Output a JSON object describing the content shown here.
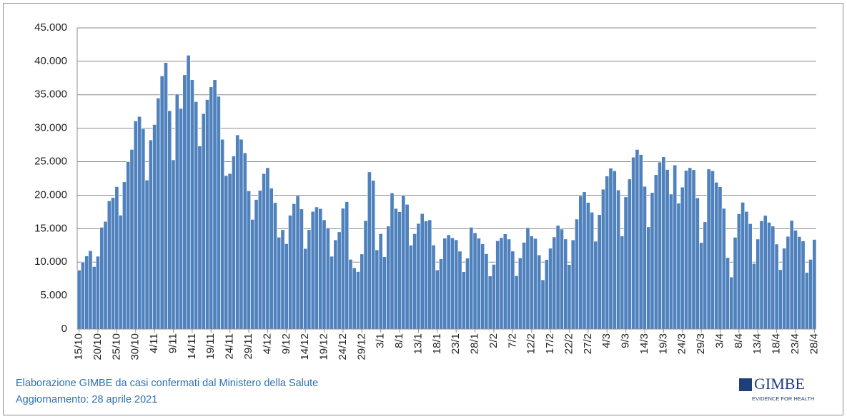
{
  "chart_data": {
    "type": "bar",
    "categories": [
      "15/10",
      null,
      null,
      null,
      null,
      "20/10",
      null,
      null,
      null,
      null,
      "25/10",
      null,
      null,
      null,
      null,
      "30/10",
      null,
      null,
      null,
      null,
      "4/11",
      null,
      null,
      null,
      null,
      "9/11",
      null,
      null,
      null,
      null,
      "14/11",
      null,
      null,
      null,
      null,
      "19/11",
      null,
      null,
      null,
      null,
      "24/11",
      null,
      null,
      null,
      null,
      "29/11",
      null,
      null,
      null,
      null,
      "4/12",
      null,
      null,
      null,
      null,
      "9/12",
      null,
      null,
      null,
      null,
      "14/12",
      null,
      null,
      null,
      null,
      "19/12",
      null,
      null,
      null,
      null,
      "24/12",
      null,
      null,
      null,
      null,
      "29/12",
      null,
      null,
      null,
      null,
      "3/1",
      null,
      null,
      null,
      null,
      "8/1",
      null,
      null,
      null,
      null,
      "13/1",
      null,
      null,
      null,
      null,
      "18/1",
      null,
      null,
      null,
      null,
      "23/1",
      null,
      null,
      null,
      null,
      "28/1",
      null,
      null,
      null,
      null,
      "2/2",
      null,
      null,
      null,
      null,
      "7/2",
      null,
      null,
      null,
      null,
      "12/2",
      null,
      null,
      null,
      null,
      "17/2",
      null,
      null,
      null,
      null,
      "22/2",
      null,
      null,
      null,
      null,
      "27/2",
      null,
      null,
      null,
      null,
      "4/3",
      null,
      null,
      null,
      null,
      "9/3",
      null,
      null,
      null,
      null,
      "14/3",
      null,
      null,
      null,
      null,
      "19/3",
      null,
      null,
      null,
      null,
      "24/3",
      null,
      null,
      null,
      null,
      "29/3",
      null,
      null,
      null,
      null,
      "3/4",
      null,
      null,
      null,
      null,
      "8/4",
      null,
      null,
      null,
      null,
      "13/4",
      null,
      null,
      null,
      null,
      "18/4",
      null,
      null,
      null,
      null,
      "23/4",
      null,
      null,
      null,
      null,
      "28/4"
    ],
    "values": [
      8804,
      10010,
      10925,
      11705,
      9338,
      10874,
      15199,
      16079,
      19143,
      19644,
      21273,
      17012,
      21994,
      24991,
      26831,
      31084,
      31758,
      29907,
      22253,
      28244,
      30550,
      34505,
      37809,
      39811,
      32616,
      25271,
      35098,
      32961,
      37978,
      40902,
      37255,
      33979,
      27354,
      32191,
      34283,
      36176,
      37242,
      34767,
      28337,
      22930,
      23232,
      25853,
      29003,
      28352,
      26323,
      20648,
      16377,
      19350,
      20709,
      23225,
      24099,
      21052,
      18887,
      13720,
      14842,
      12756,
      16999,
      18727,
      19903,
      17938,
      12030,
      14844,
      17572,
      18236,
      17992,
      16308,
      15104,
      10872,
      13318,
      14522,
      18040,
      19037,
      10407,
      9132,
      8585,
      11212,
      16202,
      23477,
      22211,
      11831,
      14245,
      10800,
      15378,
      20331,
      18020,
      17533,
      19978,
      18627,
      12532,
      14242,
      15774,
      17246,
      16146,
      16310,
      12545,
      8824,
      10497,
      13571,
      14078,
      13633,
      13331,
      11629,
      8561,
      10593,
      15204,
      14372,
      13574,
      12715,
      11252,
      7925,
      9660,
      13189,
      13659,
      14218,
      13442,
      11641,
      7970,
      10630,
      12956,
      15146,
      13908,
      13532,
      11068,
      7351,
      10386,
      12074,
      13762,
      15479,
      14931,
      13452,
      9630,
      13314,
      16424,
      19886,
      20499,
      18916,
      17455,
      13114,
      17083,
      20884,
      22865,
      24036,
      23641,
      20765,
      13902,
      19749,
      22409,
      25673,
      26824,
      26062,
      21315,
      15267,
      20396,
      23059,
      24935,
      25735,
      23832,
      20159,
      24500,
      18800,
      21200,
      23700,
      24100,
      23800,
      19600,
      12916,
      16017,
      23904,
      23649,
      21932,
      21261,
      18025,
      10680,
      7767,
      13708,
      17221,
      18938,
      17567,
      15746,
      9789,
      13447,
      16168,
      16974,
      15943,
      15370,
      12694,
      8864,
      12074,
      13844,
      16232,
      14761,
      13817,
      13158,
      8444,
      10404,
      13385
    ],
    "color": "#4f81bd",
    "ylim": [
      0,
      45000
    ],
    "yticks": [
      0,
      {
        "value": 5000,
        "label": "5.000"
      },
      {
        "value": 10000,
        "label": "10.000"
      },
      {
        "value": 15000,
        "label": "15.000"
      },
      {
        "value": 20000,
        "label": "20.000"
      },
      {
        "value": 25000,
        "label": "25.000"
      },
      {
        "value": 30000,
        "label": "30.000"
      },
      {
        "value": 35000,
        "label": "35.000"
      },
      {
        "value": 40000,
        "label": "40.000"
      },
      {
        "value": 45000,
        "label": "45.000"
      }
    ],
    "grid": true,
    "source": "Elaborazione GIMBE da casi confermati dal Ministero della Salute",
    "updated": "Aggiornamento: 28 aprile 2021",
    "logo": "GIMBE",
    "logo_tagline": "EVIDENCE FOR HEALTH"
  }
}
